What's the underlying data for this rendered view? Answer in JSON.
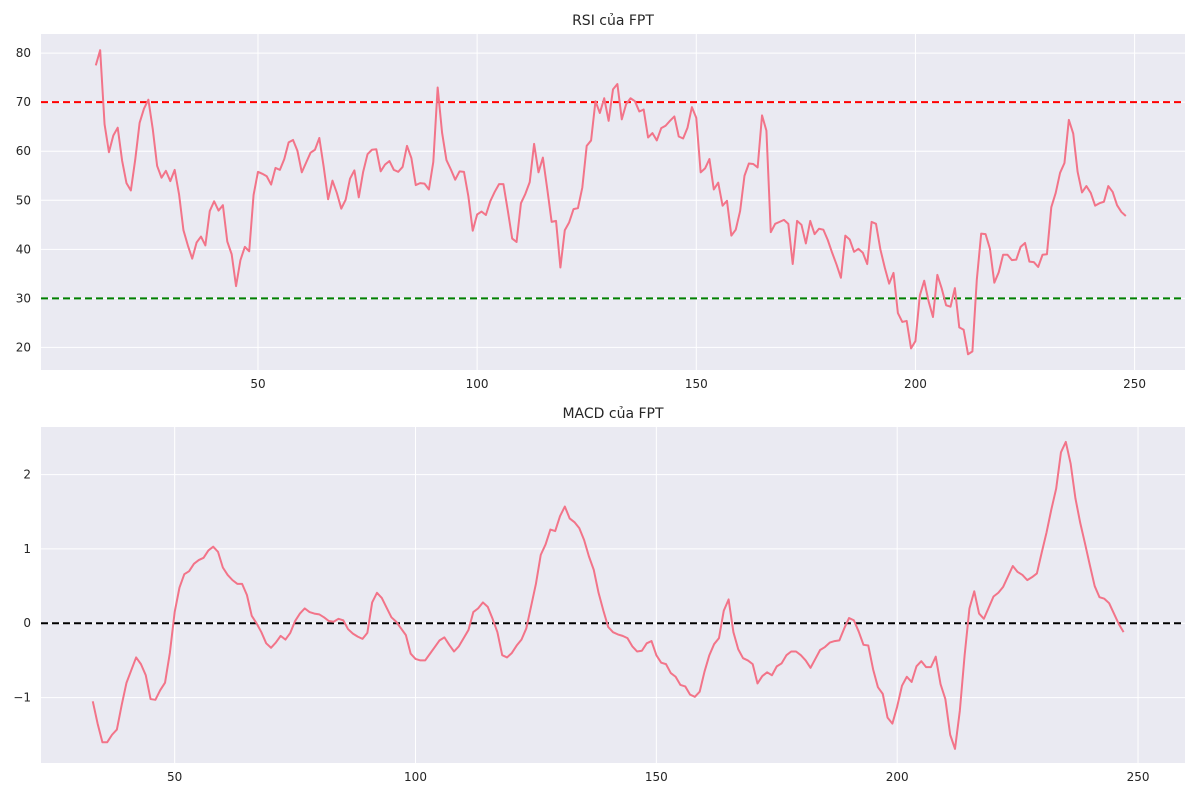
{
  "chart_data": [
    {
      "type": "line",
      "title": "RSI của FPT",
      "xlabel": "",
      "ylabel": "",
      "xlim": [
        0.5,
        261.5
      ],
      "ylim": [
        15.4,
        83.9
      ],
      "xticks": [
        50,
        100,
        150,
        200,
        250
      ],
      "yticks": [
        20,
        30,
        40,
        50,
        60,
        70,
        80
      ],
      "grid": true,
      "colors": {
        "background": "#EAEAF2",
        "grid": "#FFFFFF",
        "line": "#F27489",
        "upper_ref": "#FF0000",
        "lower_ref": "#008000"
      },
      "reference_lines": [
        {
          "y": 70,
          "color": "#FF0000",
          "style": "dashed"
        },
        {
          "y": 30,
          "color": "#008000",
          "style": "dashed"
        }
      ],
      "series": [
        {
          "x_start": 13,
          "values": [
            77.5,
            80.6,
            65.5,
            59.8,
            63.2,
            64.8,
            58.1,
            53.5,
            52.0,
            58.3,
            65.8,
            68.7,
            70.5,
            64.5,
            57.0,
            54.6,
            56.0,
            53.9,
            56.2,
            51.2,
            43.9,
            40.8,
            38.1,
            41.4,
            42.6,
            40.8,
            47.8,
            49.8,
            47.9,
            49.0,
            41.6,
            39.0,
            32.5,
            37.8,
            40.5,
            39.6,
            51.1,
            55.8,
            55.4,
            54.9,
            53.2,
            56.6,
            56.2,
            58.4,
            61.8,
            62.3,
            60.1,
            55.7,
            57.7,
            59.7,
            60.3,
            62.7,
            56.8,
            50.2,
            54.0,
            51.5,
            48.3,
            50.1,
            54.4,
            56.1,
            50.6,
            55.8,
            59.4,
            60.3,
            60.4,
            55.9,
            57.3,
            58.0,
            56.2,
            55.8,
            56.8,
            61.1,
            58.6,
            53.1,
            53.5,
            53.4,
            52.2,
            57.8,
            73.0,
            63.8,
            58.2,
            56.3,
            54.2,
            55.9,
            55.8,
            50.8,
            43.8,
            47.1,
            47.7,
            47.0,
            49.8,
            51.7,
            53.3,
            53.3,
            47.9,
            42.2,
            41.5,
            49.4,
            51.3,
            53.7,
            61.5,
            55.7,
            58.7,
            52.3,
            45.6,
            45.8,
            36.3,
            43.9,
            45.5,
            48.2,
            48.4,
            52.6,
            61.1,
            62.2,
            70.2,
            67.8,
            70.8,
            66.2,
            72.6,
            73.7,
            66.5,
            69.6,
            70.8,
            70.2,
            68.1,
            68.5,
            62.8,
            63.7,
            62.2,
            64.7,
            65.2,
            66.2,
            67.1,
            63.0,
            62.6,
            64.8,
            69.0,
            66.8,
            55.7,
            56.5,
            58.4,
            52.2,
            53.6,
            48.9,
            49.9,
            42.8,
            44.0,
            47.8,
            55.0,
            57.5,
            57.4,
            56.7,
            67.3,
            64.2,
            43.5,
            45.2,
            45.6,
            46.0,
            45.2,
            37.0,
            45.8,
            45.0,
            41.2,
            45.8,
            43.1,
            44.2,
            44.0,
            41.9,
            39.3,
            36.9,
            34.2,
            42.8,
            42.0,
            39.5,
            40.1,
            39.3,
            37.0,
            45.6,
            45.2,
            40.0,
            36.3,
            33.0,
            35.2,
            27.0,
            25.2,
            25.4,
            19.8,
            21.3,
            30.6,
            33.6,
            29.4,
            26.2,
            34.8,
            32.0,
            28.6,
            28.3,
            32.1,
            24.1,
            23.6,
            18.6,
            19.2,
            33.8,
            43.2,
            43.1,
            40.1,
            33.2,
            35.3,
            38.9,
            38.9,
            37.8,
            37.9,
            40.5,
            41.3,
            37.5,
            37.4,
            36.4,
            38.9,
            39.0,
            48.6,
            51.5,
            55.6,
            57.6,
            66.4,
            63.6,
            55.8,
            51.6,
            52.9,
            51.5,
            48.9,
            49.4,
            49.7,
            52.9,
            51.7,
            49.0,
            47.6,
            46.8
          ]
        }
      ]
    },
    {
      "type": "line",
      "title": "MACD của FPT",
      "xlabel": "",
      "ylabel": "",
      "xlim": [
        22.25,
        259.75
      ],
      "ylim": [
        -1.88,
        2.64
      ],
      "xticks": [
        50,
        100,
        150,
        200,
        250
      ],
      "yticks": [
        -1,
        0,
        1,
        2
      ],
      "grid": true,
      "colors": {
        "background": "#EAEAF2",
        "grid": "#FFFFFF",
        "line": "#F27489",
        "zero_ref": "#000000"
      },
      "reference_lines": [
        {
          "y": 0,
          "color": "#000000",
          "style": "dashed"
        }
      ],
      "series": [
        {
          "x_start": 33,
          "values": [
            -1.05,
            -1.35,
            -1.6,
            -1.6,
            -1.5,
            -1.43,
            -1.1,
            -0.8,
            -0.63,
            -0.46,
            -0.55,
            -0.7,
            -1.02,
            -1.03,
            -0.9,
            -0.8,
            -0.4,
            0.15,
            0.48,
            0.66,
            0.7,
            0.8,
            0.85,
            0.88,
            0.98,
            1.03,
            0.96,
            0.75,
            0.65,
            0.58,
            0.53,
            0.53,
            0.38,
            0.1,
            0.0,
            -0.12,
            -0.27,
            -0.33,
            -0.26,
            -0.17,
            -0.22,
            -0.13,
            0.03,
            0.13,
            0.2,
            0.15,
            0.13,
            0.12,
            0.08,
            0.03,
            0.02,
            0.06,
            0.04,
            -0.08,
            -0.14,
            -0.18,
            -0.21,
            -0.13,
            0.28,
            0.41,
            0.34,
            0.21,
            0.08,
            0.02,
            -0.07,
            -0.16,
            -0.41,
            -0.48,
            -0.5,
            -0.5,
            -0.41,
            -0.32,
            -0.23,
            -0.19,
            -0.29,
            -0.38,
            -0.31,
            -0.2,
            -0.09,
            0.15,
            0.2,
            0.28,
            0.22,
            0.06,
            -0.12,
            -0.43,
            -0.46,
            -0.4,
            -0.3,
            -0.22,
            -0.07,
            0.23,
            0.53,
            0.92,
            1.06,
            1.26,
            1.24,
            1.44,
            1.57,
            1.41,
            1.36,
            1.28,
            1.12,
            0.9,
            0.72,
            0.41,
            0.17,
            -0.05,
            -0.12,
            -0.15,
            -0.17,
            -0.2,
            -0.31,
            -0.38,
            -0.37,
            -0.27,
            -0.24,
            -0.43,
            -0.53,
            -0.55,
            -0.67,
            -0.72,
            -0.83,
            -0.85,
            -0.96,
            -0.99,
            -0.92,
            -0.65,
            -0.43,
            -0.28,
            -0.2,
            0.17,
            0.32,
            -0.12,
            -0.35,
            -0.47,
            -0.5,
            -0.55,
            -0.81,
            -0.71,
            -0.66,
            -0.7,
            -0.58,
            -0.54,
            -0.43,
            -0.38,
            -0.38,
            -0.43,
            -0.5,
            -0.6,
            -0.48,
            -0.36,
            -0.32,
            -0.26,
            -0.24,
            -0.23,
            -0.07,
            0.07,
            0.04,
            -0.11,
            -0.29,
            -0.3,
            -0.62,
            -0.86,
            -0.95,
            -1.27,
            -1.35,
            -1.12,
            -0.84,
            -0.72,
            -0.79,
            -0.58,
            -0.51,
            -0.59,
            -0.59,
            -0.45,
            -0.82,
            -1.02,
            -1.5,
            -1.69,
            -1.18,
            -0.43,
            0.2,
            0.43,
            0.13,
            0.06,
            0.21,
            0.36,
            0.41,
            0.49,
            0.63,
            0.77,
            0.69,
            0.65,
            0.58,
            0.62,
            0.67,
            0.95,
            1.22,
            1.53,
            1.81,
            2.3,
            2.44,
            2.15,
            1.68,
            1.35,
            1.07,
            0.78,
            0.5,
            0.35,
            0.33,
            0.27,
            0.13,
            -0.01,
            -0.12
          ]
        }
      ]
    }
  ]
}
